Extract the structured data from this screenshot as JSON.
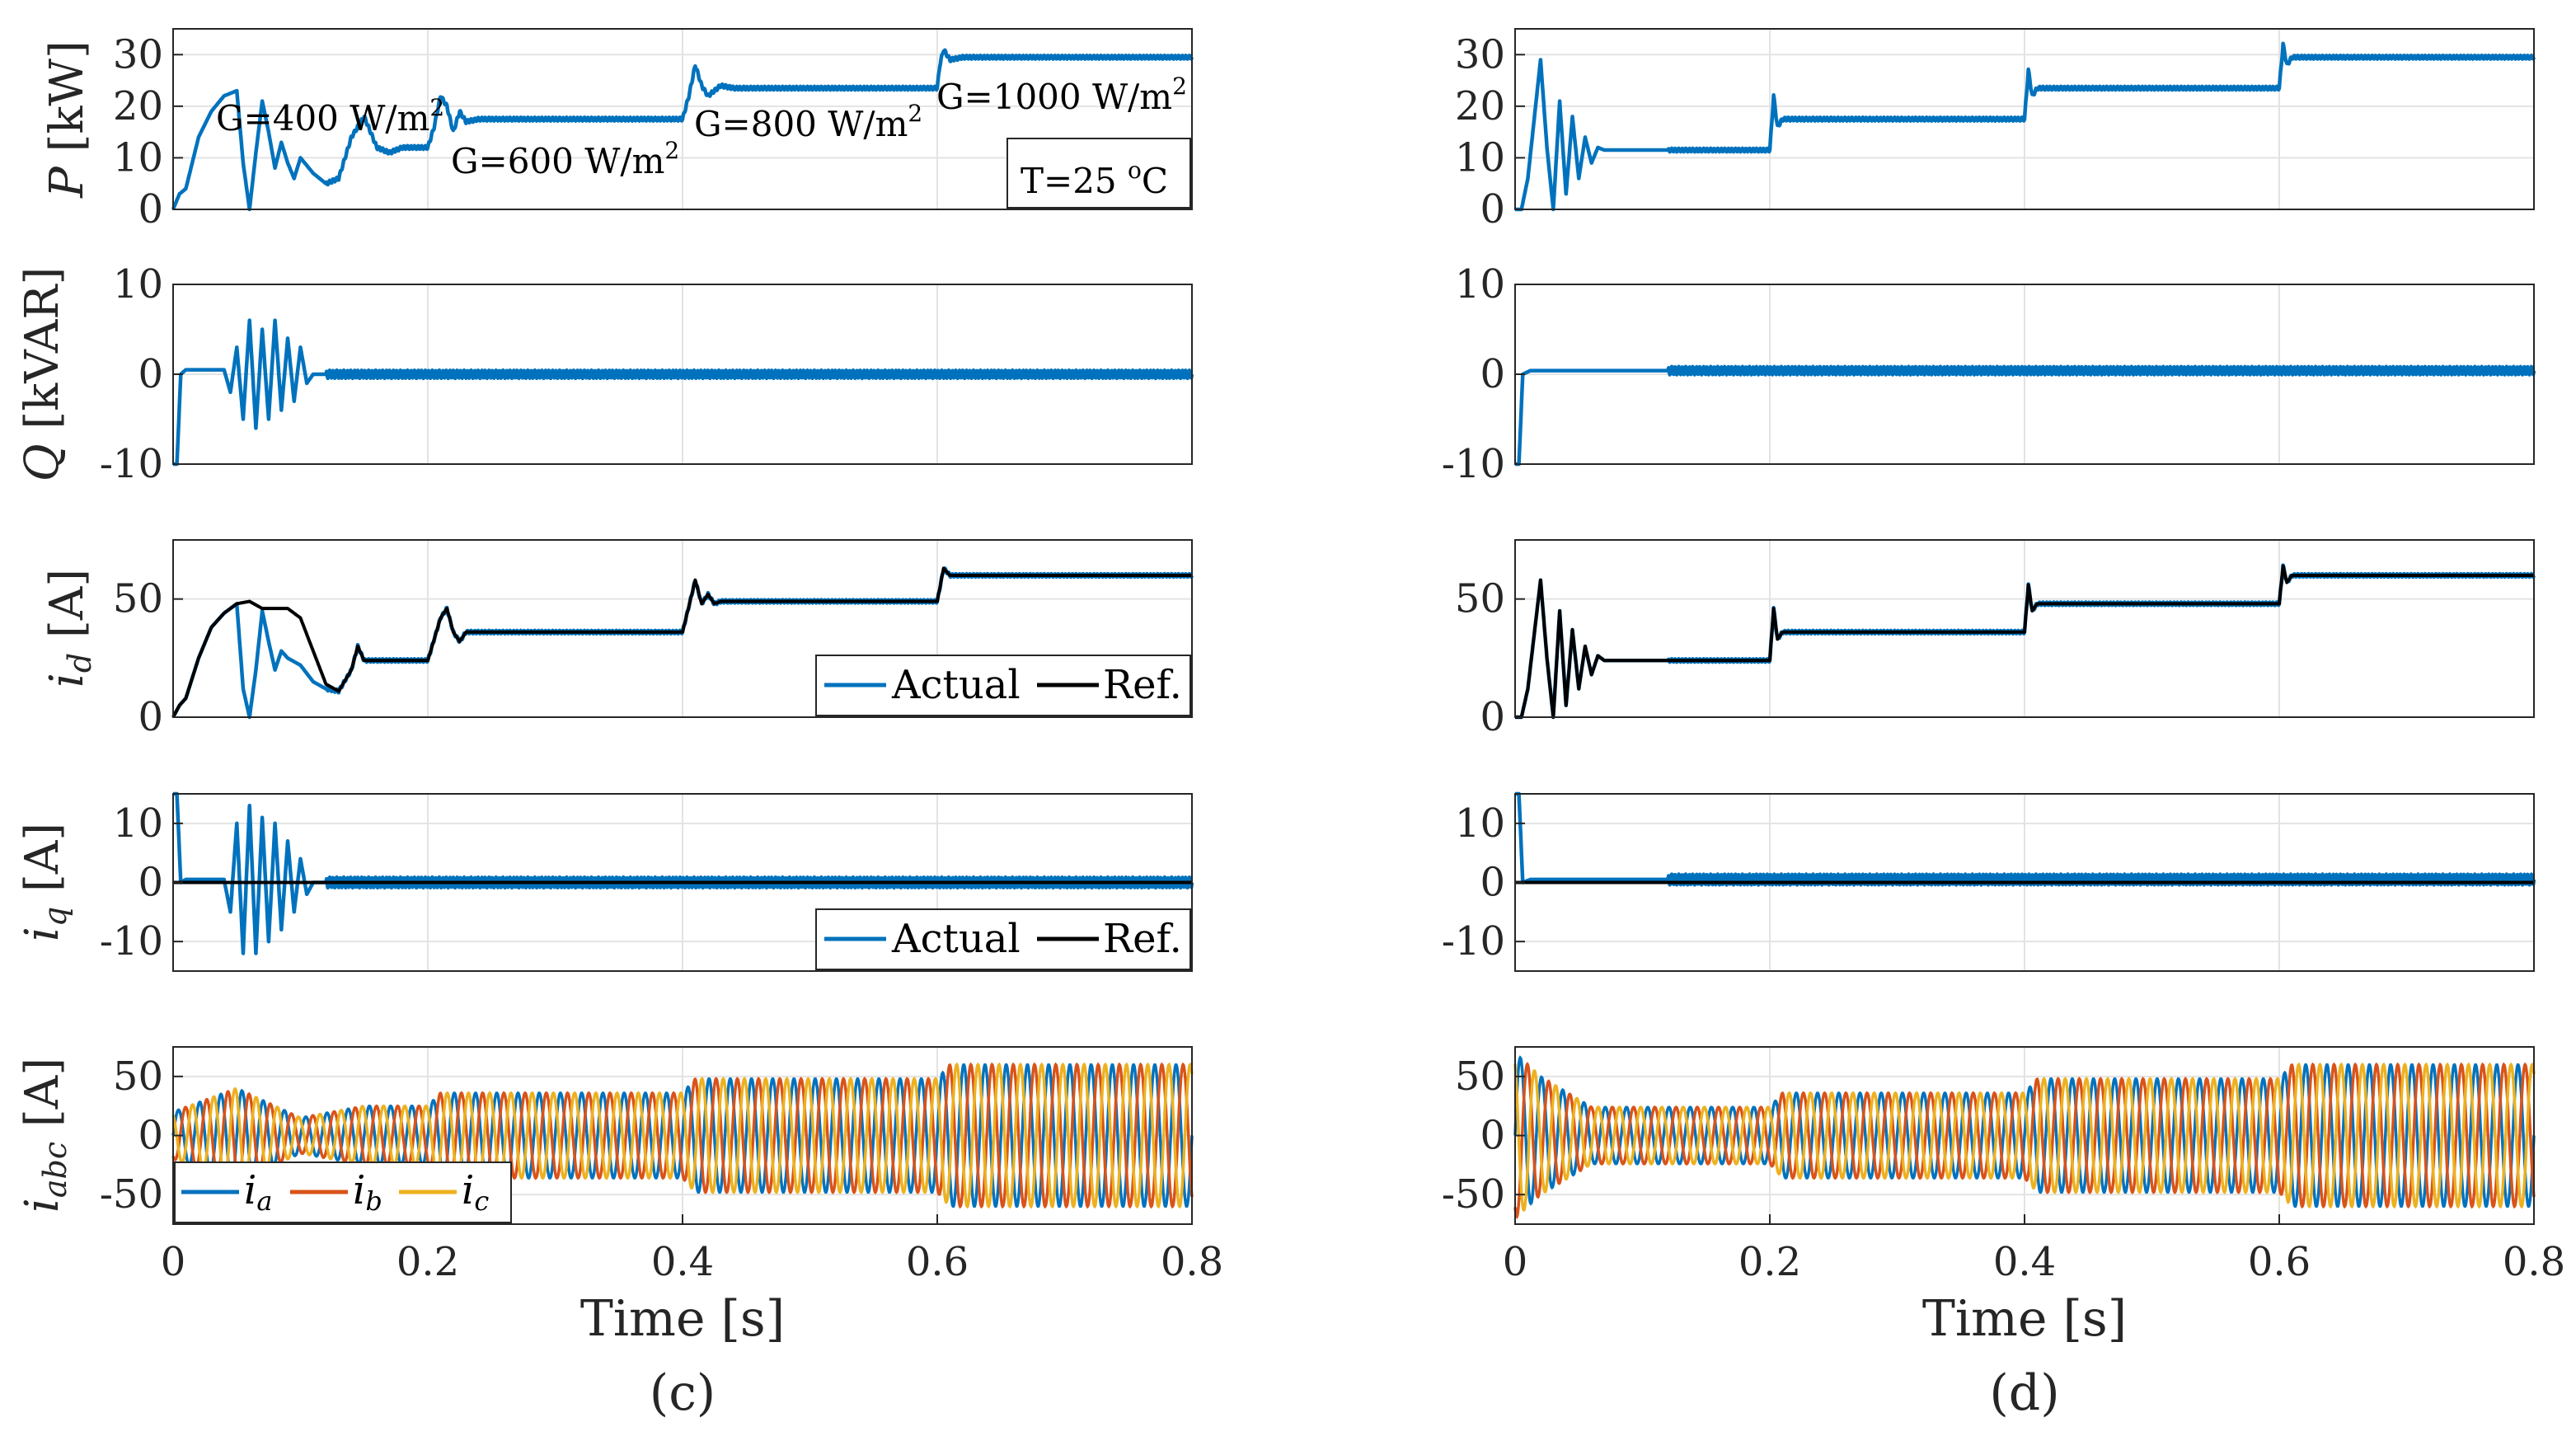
{
  "colors": {
    "blue": "#0072BD",
    "black": "#000000",
    "orange": "#D95319",
    "yellow": "#EDB120",
    "grid": "#e3e3e3",
    "axis": "#262626"
  },
  "chart_data": [
    {
      "type": "line",
      "panel": "c",
      "caption": "(c)",
      "xlabel": "Time [s]",
      "xlim": [
        0,
        0.8
      ],
      "xticks": [
        "0",
        "0.2",
        "0.4",
        "0.6",
        "0.8"
      ],
      "subplots": [
        {
          "id": "P",
          "ylabel_var": "P",
          "ylabel_unit": "[kW]",
          "ylim": [
            0,
            35
          ],
          "yticks": [
            "0",
            "10",
            "20",
            "30"
          ],
          "grid": true,
          "series": [
            {
              "name": "P",
              "color": "blue",
              "x": [
                0,
                0.005,
                0.01,
                0.02,
                0.03,
                0.04,
                0.05,
                0.055,
                0.06,
                0.065,
                0.07,
                0.075,
                0.08,
                0.085,
                0.09,
                0.095,
                0.1,
                0.11,
                0.12,
                0.13,
                0.14,
                0.15,
                0.16,
                0.17,
                0.18,
                0.2,
                0.205,
                0.21,
                0.215,
                0.22,
                0.225,
                0.23,
                0.24,
                0.25,
                0.4,
                0.405,
                0.41,
                0.415,
                0.42,
                0.43,
                0.44,
                0.6,
                0.602,
                0.605,
                0.61,
                0.62,
                0.8
              ],
              "y": [
                0,
                3,
                4,
                14,
                19,
                22,
                23,
                9,
                0,
                11,
                21,
                15,
                8,
                13,
                9,
                6,
                10,
                7,
                5,
                6,
                14,
                18,
                12,
                11,
                12,
                12,
                16,
                22,
                20,
                15,
                19,
                17,
                17.5,
                17.5,
                17.5,
                22,
                28,
                24,
                22,
                24,
                23.5,
                23.5,
                28,
                31,
                29,
                29.5,
                29.5
              ]
            }
          ],
          "annotations": [
            "G=400 W/m",
            "G=600 W/m",
            "G=800 W/m",
            "G=1000 W/m"
          ],
          "annotation_sup": "2",
          "box_label": "T=25",
          "box_sup": "o",
          "box_unit": "C"
        },
        {
          "id": "Q",
          "ylabel_var": "Q",
          "ylabel_unit": "[kVAR]",
          "ylim": [
            -10,
            10
          ],
          "yticks": [
            "-10",
            "0",
            "10"
          ],
          "grid": true,
          "series": [
            {
              "name": "Q",
              "color": "blue",
              "x": [
                0,
                0.003,
                0.006,
                0.01,
                0.04,
                0.045,
                0.05,
                0.055,
                0.06,
                0.065,
                0.07,
                0.075,
                0.08,
                0.085,
                0.09,
                0.095,
                0.1,
                0.105,
                0.11,
                0.8
              ],
              "y": [
                -10,
                -10,
                0,
                0.5,
                0.5,
                -2,
                3,
                -5,
                6,
                -6,
                5,
                -5,
                6,
                -4,
                4,
                -3,
                3,
                -1,
                0,
                0
              ]
            }
          ]
        },
        {
          "id": "id",
          "ylabel_var": "i",
          "ylabel_sub": "d",
          "ylabel_unit": "[A]",
          "ylim": [
            0,
            75
          ],
          "yticks": [
            "0",
            "50"
          ],
          "grid": true,
          "legend": {
            "position": "bottom-right",
            "items": [
              "Actual",
              "Ref."
            ]
          },
          "series": [
            {
              "name": "Actual",
              "color": "blue",
              "x": [
                0,
                0.005,
                0.01,
                0.02,
                0.03,
                0.04,
                0.05,
                0.055,
                0.06,
                0.065,
                0.07,
                0.075,
                0.08,
                0.085,
                0.09,
                0.1,
                0.11,
                0.12,
                0.13,
                0.14,
                0.145,
                0.15,
                0.16,
                0.17,
                0.2,
                0.21,
                0.215,
                0.22,
                0.225,
                0.23,
                0.24,
                0.4,
                0.41,
                0.415,
                0.42,
                0.425,
                0.43,
                0.6,
                0.605,
                0.61,
                0.8
              ],
              "y": [
                0,
                5,
                8,
                25,
                38,
                44,
                48,
                12,
                0,
                20,
                45,
                32,
                20,
                28,
                25,
                22,
                15,
                12,
                11,
                20,
                30,
                24,
                24,
                24,
                24,
                42,
                46,
                36,
                32,
                36,
                36,
                36,
                58,
                48,
                52,
                48,
                49,
                49,
                63,
                60,
                60
              ]
            },
            {
              "name": "Ref.",
              "color": "black",
              "x": [
                0,
                0.005,
                0.01,
                0.02,
                0.03,
                0.04,
                0.05,
                0.06,
                0.07,
                0.08,
                0.09,
                0.1,
                0.11,
                0.12,
                0.13,
                0.14,
                0.145,
                0.15,
                0.16,
                0.17,
                0.2,
                0.21,
                0.215,
                0.22,
                0.225,
                0.23,
                0.24,
                0.4,
                0.41,
                0.415,
                0.42,
                0.425,
                0.43,
                0.6,
                0.605,
                0.61,
                0.8
              ],
              "y": [
                0,
                5,
                8,
                25,
                38,
                44,
                48,
                49,
                46,
                46,
                46,
                42,
                28,
                14,
                11,
                20,
                30,
                24,
                24,
                24,
                24,
                42,
                46,
                36,
                32,
                36,
                36,
                36,
                58,
                48,
                52,
                48,
                49,
                49,
                63,
                60,
                60
              ]
            }
          ]
        },
        {
          "id": "iq",
          "ylabel_var": "i",
          "ylabel_sub": "q",
          "ylabel_unit": "[A]",
          "ylim": [
            -15,
            15
          ],
          "yticks": [
            "-10",
            "0",
            "10"
          ],
          "grid": true,
          "legend": {
            "position": "bottom-right",
            "items": [
              "Actual",
              "Ref."
            ]
          },
          "series": [
            {
              "name": "Actual",
              "color": "blue",
              "x": [
                0,
                0.003,
                0.006,
                0.01,
                0.04,
                0.045,
                0.05,
                0.055,
                0.06,
                0.065,
                0.07,
                0.075,
                0.08,
                0.085,
                0.09,
                0.095,
                0.1,
                0.105,
                0.11,
                0.8
              ],
              "y": [
                15,
                15,
                0,
                0.5,
                0.5,
                -5,
                10,
                -12,
                13,
                -12,
                11,
                -10,
                10,
                -8,
                7,
                -5,
                4,
                -2,
                0,
                0
              ]
            },
            {
              "name": "Ref.",
              "color": "black",
              "x": [
                0,
                0.8
              ],
              "y": [
                0,
                0
              ]
            }
          ]
        },
        {
          "id": "iabc",
          "ylabel_var": "i",
          "ylabel_sub": "abc",
          "ylabel_unit": "[A]",
          "ylim": [
            -75,
            75
          ],
          "yticks": [
            "-50",
            "0",
            "50"
          ],
          "grid": true,
          "legend": {
            "position": "bottom-left",
            "items": [
              "a",
              "b",
              "c"
            ],
            "symbol": "i"
          },
          "series": [
            {
              "name": "i_a",
              "color": "blue",
              "type": "three-phase-sine",
              "phase_deg": 0
            },
            {
              "name": "i_b",
              "color": "orange",
              "type": "three-phase-sine",
              "phase_deg": -120
            },
            {
              "name": "i_c",
              "color": "yellow",
              "type": "three-phase-sine",
              "phase_deg": 120
            }
          ],
          "frequency_hz": 60,
          "amplitude_envelope": {
            "x": [
              0,
              0.05,
              0.1,
              0.15,
              0.2,
              0.21,
              0.4,
              0.41,
              0.6,
              0.61,
              0.8
            ],
            "y": [
              20,
              40,
              15,
              25,
              25,
              36,
              36,
              48,
              48,
              60,
              60
            ]
          }
        }
      ]
    },
    {
      "type": "line",
      "panel": "d",
      "caption": "(d)",
      "xlabel": "Time [s]",
      "xlim": [
        0,
        0.8
      ],
      "xticks": [
        "0",
        "0.2",
        "0.4",
        "0.6",
        "0.8"
      ],
      "subplots": [
        {
          "id": "P",
          "ylim": [
            0,
            35
          ],
          "yticks": [
            "0",
            "10",
            "20",
            "30"
          ],
          "grid": true,
          "series": [
            {
              "name": "P",
              "color": "blue",
              "x": [
                0,
                0.005,
                0.01,
                0.02,
                0.025,
                0.03,
                0.035,
                0.04,
                0.045,
                0.05,
                0.055,
                0.06,
                0.065,
                0.07,
                0.2,
                0.203,
                0.206,
                0.21,
                0.4,
                0.403,
                0.406,
                0.41,
                0.6,
                0.603,
                0.606,
                0.61,
                0.8
              ],
              "y": [
                0,
                0,
                6,
                29,
                12,
                0,
                21,
                3,
                18,
                6,
                14,
                9,
                12,
                11.5,
                11.5,
                22,
                16,
                17.5,
                17.5,
                27,
                22,
                23.5,
                23.5,
                32,
                28,
                29.5,
                29.5
              ]
            }
          ]
        },
        {
          "id": "Q",
          "ylim": [
            -10,
            10
          ],
          "yticks": [
            "-10",
            "0",
            "10"
          ],
          "grid": true,
          "series": [
            {
              "name": "Q",
              "color": "blue",
              "x": [
                0,
                0.003,
                0.006,
                0.012,
                0.8
              ],
              "y": [
                -10,
                -10,
                0,
                0.4,
                0.4
              ]
            }
          ]
        },
        {
          "id": "id",
          "ylim": [
            0,
            75
          ],
          "yticks": [
            "0",
            "50"
          ],
          "grid": true,
          "series": [
            {
              "name": "Actual",
              "color": "blue",
              "x": [
                0,
                0.005,
                0.01,
                0.02,
                0.025,
                0.03,
                0.035,
                0.04,
                0.045,
                0.05,
                0.055,
                0.06,
                0.065,
                0.07,
                0.2,
                0.203,
                0.206,
                0.21,
                0.4,
                0.403,
                0.406,
                0.41,
                0.6,
                0.603,
                0.606,
                0.61,
                0.8
              ],
              "y": [
                0,
                0,
                12,
                58,
                25,
                0,
                45,
                5,
                37,
                12,
                30,
                18,
                26,
                24,
                24,
                46,
                33,
                36,
                36,
                56,
                45,
                48,
                48,
                64,
                57,
                60,
                60
              ]
            },
            {
              "name": "Ref.",
              "color": "black",
              "x": [
                0,
                0.005,
                0.01,
                0.02,
                0.025,
                0.03,
                0.035,
                0.04,
                0.045,
                0.05,
                0.055,
                0.06,
                0.065,
                0.07,
                0.2,
                0.203,
                0.206,
                0.21,
                0.4,
                0.403,
                0.406,
                0.41,
                0.6,
                0.603,
                0.606,
                0.61,
                0.8
              ],
              "y": [
                0,
                0,
                12,
                58,
                25,
                0,
                45,
                5,
                37,
                12,
                30,
                18,
                26,
                24,
                24,
                46,
                33,
                36,
                36,
                56,
                45,
                48,
                48,
                64,
                57,
                60,
                60
              ]
            }
          ]
        },
        {
          "id": "iq",
          "ylim": [
            -15,
            15
          ],
          "yticks": [
            "-10",
            "0",
            "10"
          ],
          "grid": true,
          "series": [
            {
              "name": "Actual",
              "color": "blue",
              "x": [
                0,
                0.003,
                0.006,
                0.012,
                0.8
              ],
              "y": [
                15,
                15,
                0,
                0.5,
                0.5
              ]
            },
            {
              "name": "Ref.",
              "color": "black",
              "x": [
                0,
                0.8
              ],
              "y": [
                0,
                0
              ]
            }
          ]
        },
        {
          "id": "iabc",
          "ylim": [
            -75,
            75
          ],
          "yticks": [
            "-50",
            "0",
            "50"
          ],
          "grid": true,
          "series": [
            {
              "name": "i_a",
              "color": "blue",
              "type": "three-phase-sine",
              "phase_deg": 0
            },
            {
              "name": "i_b",
              "color": "orange",
              "type": "three-phase-sine",
              "phase_deg": -120
            },
            {
              "name": "i_c",
              "color": "yellow",
              "type": "three-phase-sine",
              "phase_deg": 120
            }
          ],
          "frequency_hz": 60,
          "amplitude_envelope": {
            "x": [
              0,
              0.02,
              0.06,
              0.2,
              0.21,
              0.4,
              0.41,
              0.6,
              0.61,
              0.8
            ],
            "y": [
              70,
              50,
              24,
              24,
              36,
              36,
              48,
              48,
              60,
              60
            ]
          }
        }
      ]
    }
  ]
}
